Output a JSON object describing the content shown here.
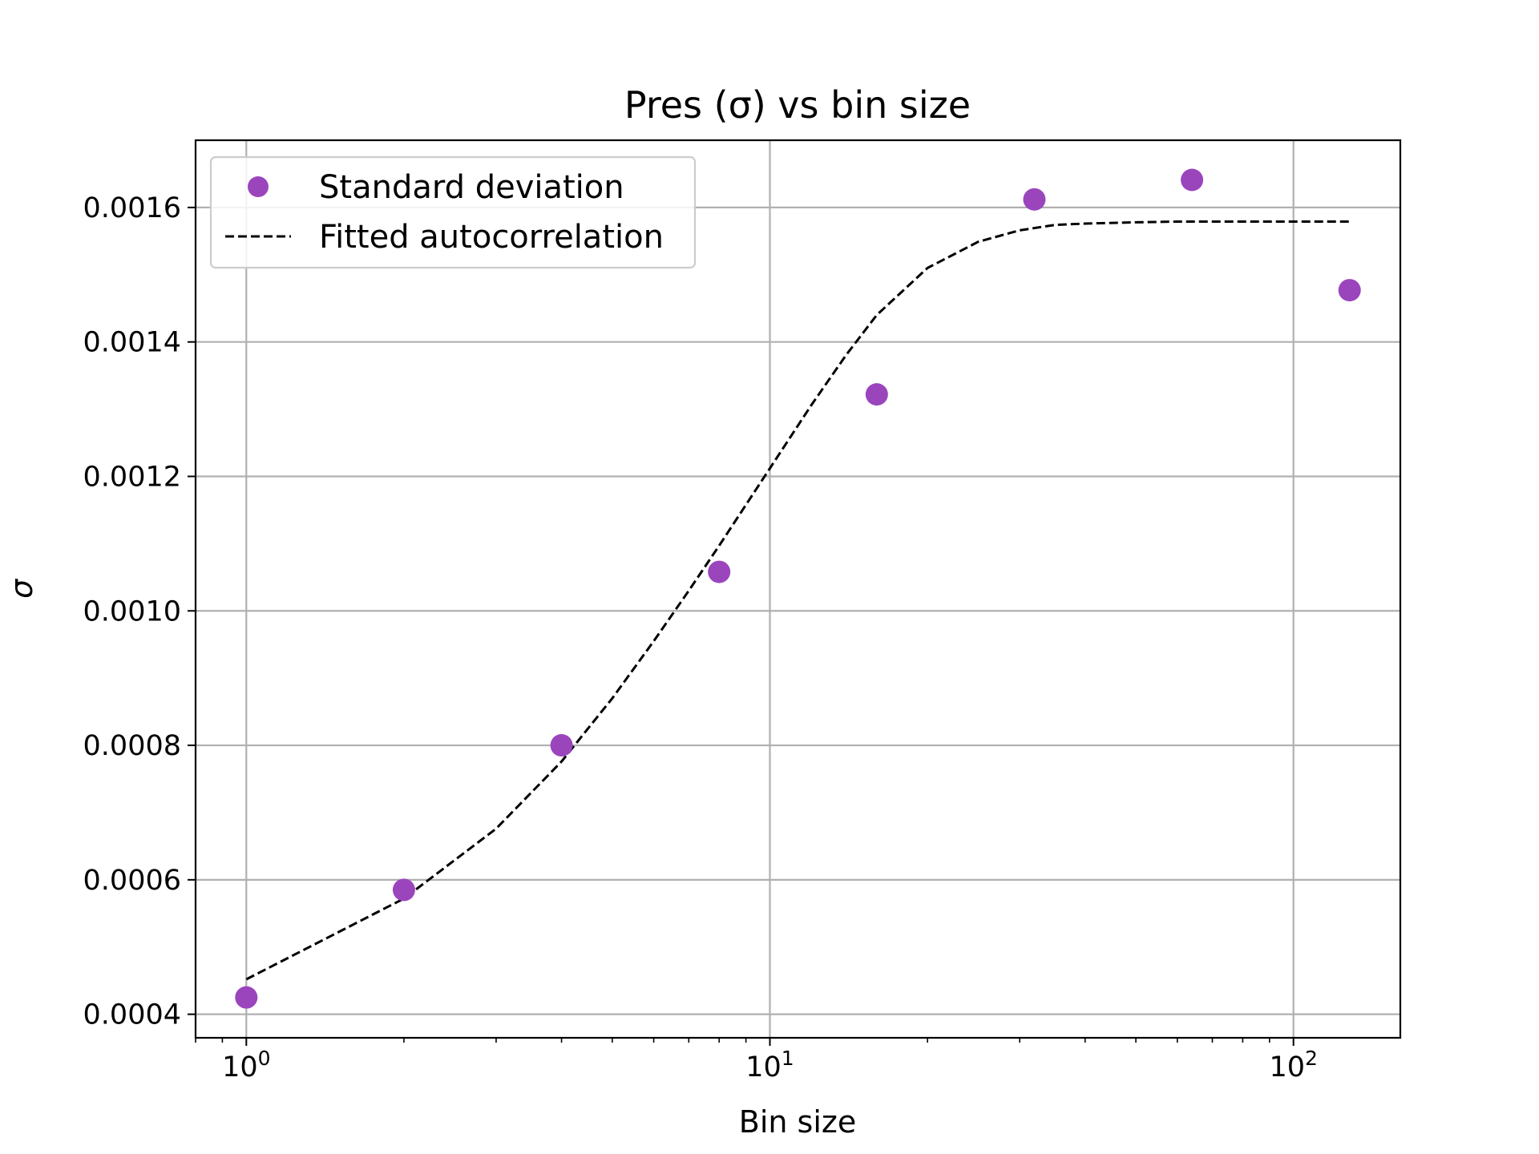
{
  "chart_data": {
    "type": "scatter",
    "title": "Pres (σ) vs bin size",
    "xlabel": "Bin size",
    "ylabel": "σ",
    "xscale": "log",
    "xlim": [
      0.8,
      160
    ],
    "ylim": [
      0.000365,
      0.0017
    ],
    "grid": true,
    "legend_position": "upper-left",
    "x_ticks": [
      {
        "value": 1,
        "base": "10",
        "exp": "0"
      },
      {
        "value": 10,
        "base": "10",
        "exp": "1"
      },
      {
        "value": 100,
        "base": "10",
        "exp": "2"
      }
    ],
    "y_ticks": [
      {
        "value": 0.0004,
        "label": "0.0004"
      },
      {
        "value": 0.0006,
        "label": "0.0006"
      },
      {
        "value": 0.0008,
        "label": "0.0008"
      },
      {
        "value": 0.001,
        "label": "0.0010"
      },
      {
        "value": 0.0012,
        "label": "0.0012"
      },
      {
        "value": 0.0014,
        "label": "0.0014"
      },
      {
        "value": 0.0016,
        "label": "0.0016"
      }
    ],
    "series": [
      {
        "name": "Standard deviation",
        "kind": "scatter",
        "color": "#9b45bd",
        "x": [
          1,
          2,
          4,
          8,
          16,
          32,
          64,
          128
        ],
        "y": [
          0.000425,
          0.000585,
          0.0008,
          0.001058,
          0.001322,
          0.001612,
          0.001641,
          0.001477
        ]
      },
      {
        "name": "Fitted autocorrelation",
        "kind": "line",
        "style": "dashed",
        "color": "#000000",
        "x": [
          1,
          2,
          3,
          4,
          5,
          6,
          7,
          8,
          10,
          12,
          14,
          16,
          20,
          25,
          30,
          35,
          40,
          50,
          60,
          80,
          100,
          128
        ],
        "y": [
          0.000452,
          0.000572,
          0.000676,
          0.000776,
          0.00087,
          0.000955,
          0.00103,
          0.001097,
          0.001212,
          0.001306,
          0.001381,
          0.00144,
          0.00151,
          0.001549,
          0.001566,
          0.001574,
          0.001576,
          0.001578,
          0.001579,
          0.001579,
          0.001579,
          0.001579
        ]
      }
    ]
  }
}
